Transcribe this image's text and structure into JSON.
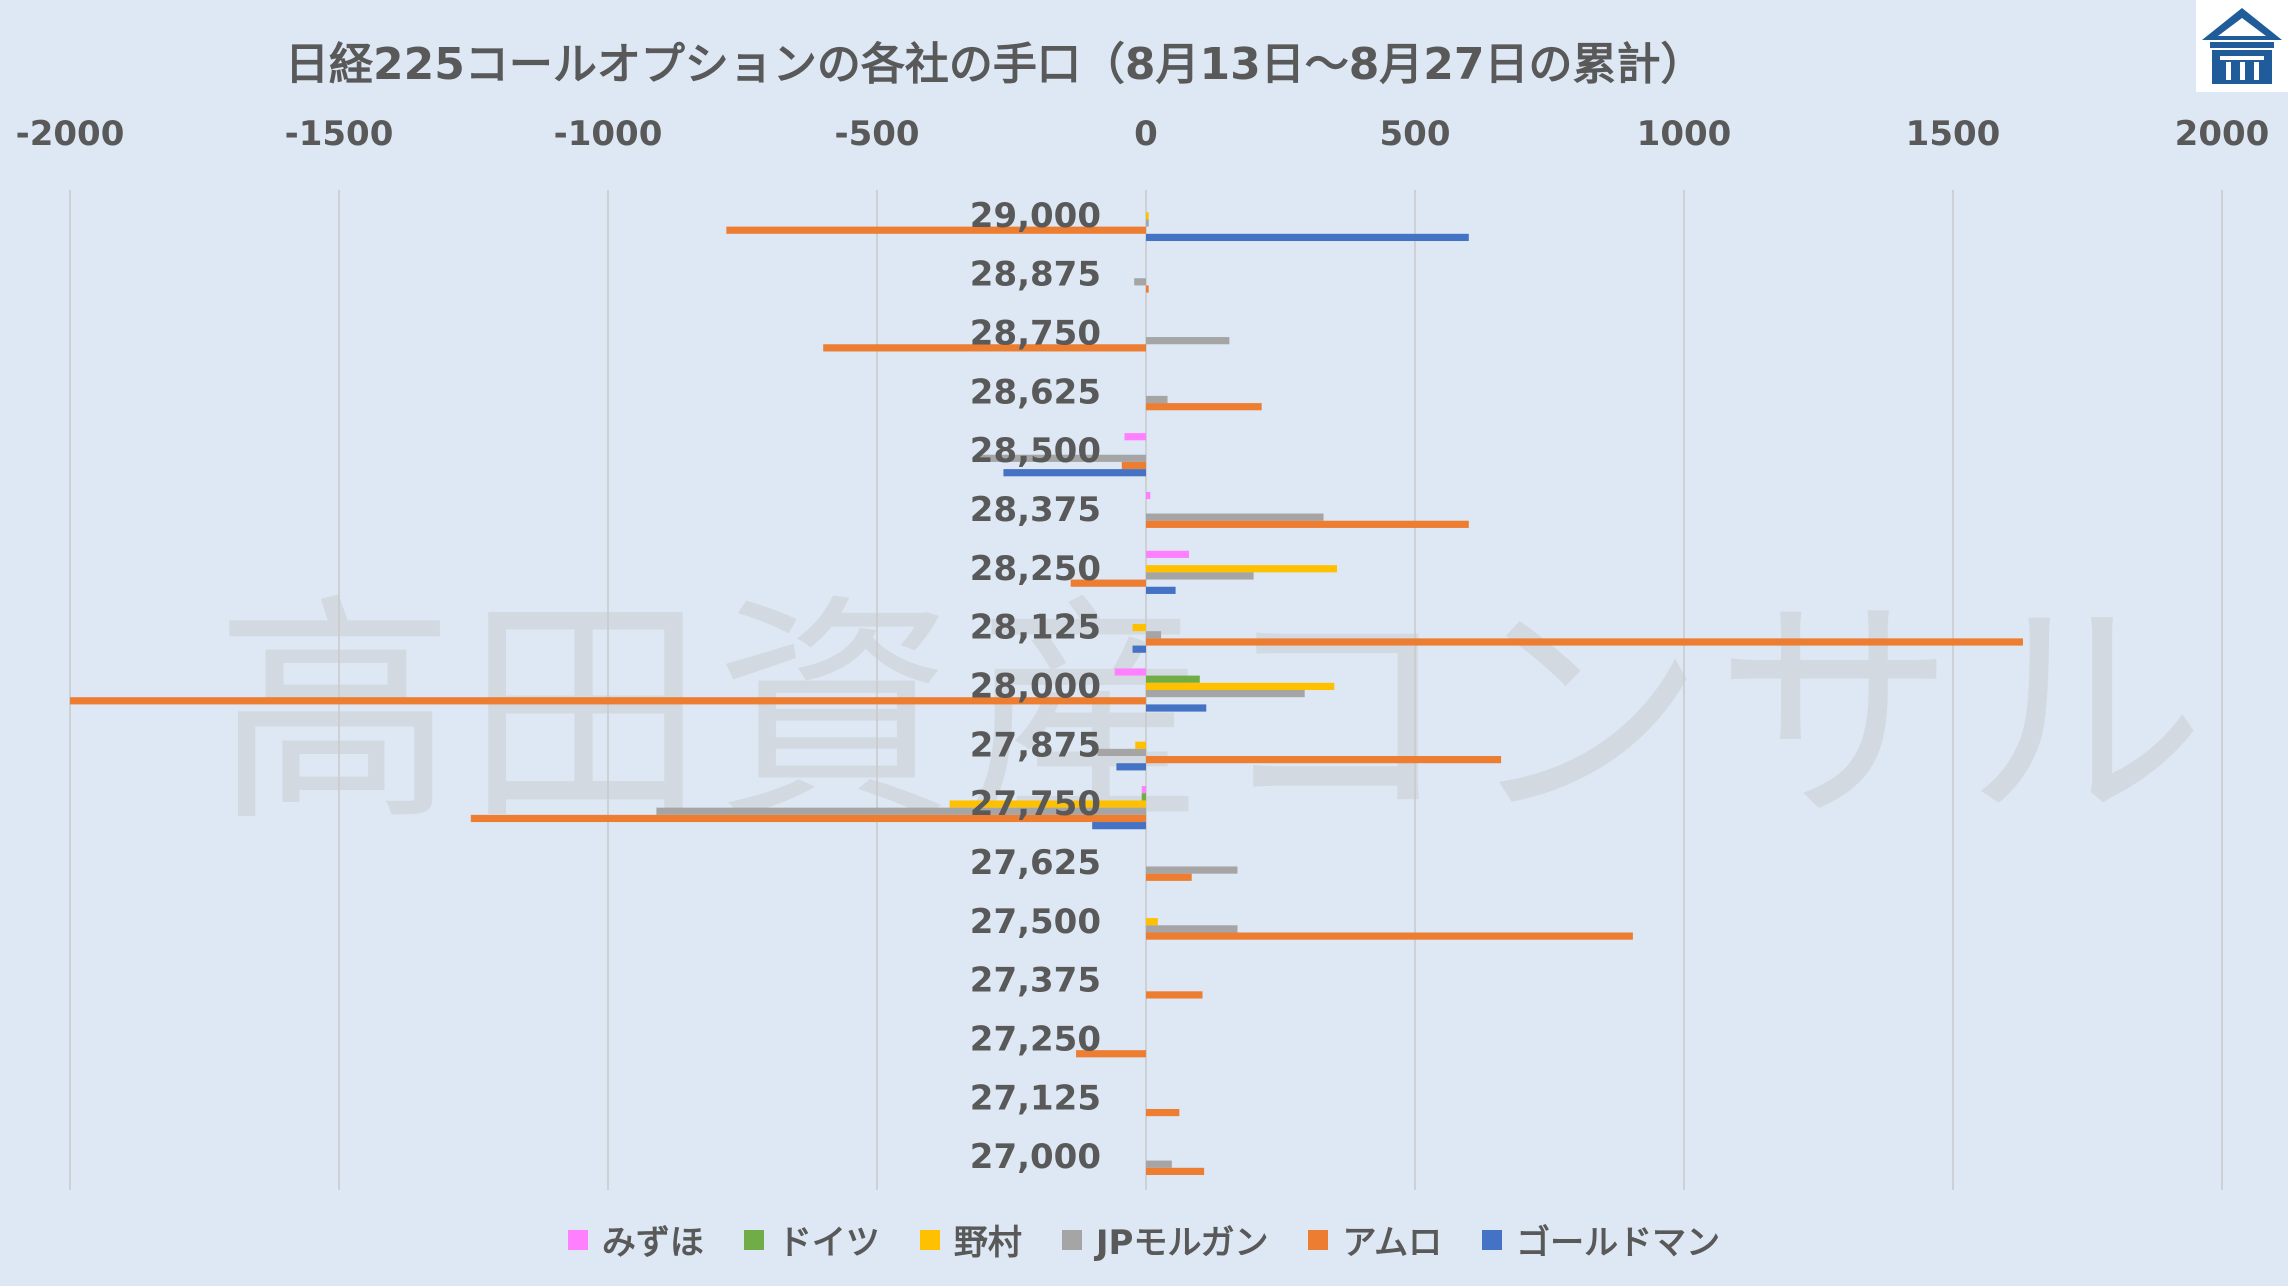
{
  "title": "日経225コールオプションの各社の手口（8月13日～8月27日の累計）",
  "watermark": "高田資産コンサル",
  "logo": {
    "icon": "building-logo-icon",
    "color": "#1f5c99"
  },
  "colors": {
    "background": "#dde8f4",
    "gridline": "#c9c9c9"
  },
  "chart_data": {
    "type": "bar",
    "orientation": "horizontal",
    "title": "日経225コールオプションの各社の手口（8月13日～8月27日の累計）",
    "xlim": [
      -2000,
      2000
    ],
    "x_ticks": [
      "-2000",
      "-1500",
      "-1000",
      "-500",
      "0",
      "500",
      "1000",
      "1500",
      "2000"
    ],
    "x_tick_values": [
      -2000,
      -1500,
      -1000,
      -500,
      0,
      500,
      1000,
      1500,
      2000
    ],
    "grid": true,
    "legend_position": "bottom",
    "categories": [
      "29,000",
      "28,875",
      "28,750",
      "28,625",
      "28,500",
      "28,375",
      "28,250",
      "28,125",
      "28,000",
      "27,875",
      "27,750",
      "27,625",
      "27,500",
      "27,375",
      "27,250",
      "27,125",
      "27,000"
    ],
    "series": [
      {
        "name": "みずほ",
        "color": "#ff80ff",
        "values": [
          0,
          0,
          0,
          0,
          -40,
          8,
          80,
          0,
          -58,
          0,
          -8,
          0,
          0,
          0,
          0,
          0,
          0
        ]
      },
      {
        "name": "ドイツ",
        "color": "#70ad47",
        "values": [
          0,
          0,
          0,
          0,
          0,
          0,
          0,
          0,
          100,
          0,
          -8,
          0,
          0,
          0,
          0,
          0,
          0
        ]
      },
      {
        "name": "野村",
        "color": "#ffc000",
        "values": [
          5,
          0,
          0,
          0,
          0,
          0,
          355,
          -25,
          350,
          -20,
          -365,
          0,
          22,
          0,
          0,
          0,
          0
        ]
      },
      {
        "name": "JPモルガン",
        "color": "#a5a5a5",
        "values": [
          5,
          -22,
          155,
          40,
          -310,
          330,
          200,
          28,
          295,
          -90,
          -910,
          170,
          170,
          0,
          0,
          0,
          48
        ]
      },
      {
        "name": "アムロ",
        "color": "#ed7d31",
        "values": [
          -780,
          5,
          -600,
          215,
          -45,
          600,
          -140,
          1630,
          -2000,
          660,
          -1255,
          85,
          905,
          105,
          -130,
          62,
          108
        ]
      },
      {
        "name": "ゴールドマン",
        "color": "#4472c4",
        "values": [
          600,
          0,
          0,
          0,
          -265,
          0,
          55,
          -25,
          112,
          -55,
          -100,
          0,
          0,
          0,
          0,
          0,
          0
        ]
      }
    ]
  }
}
